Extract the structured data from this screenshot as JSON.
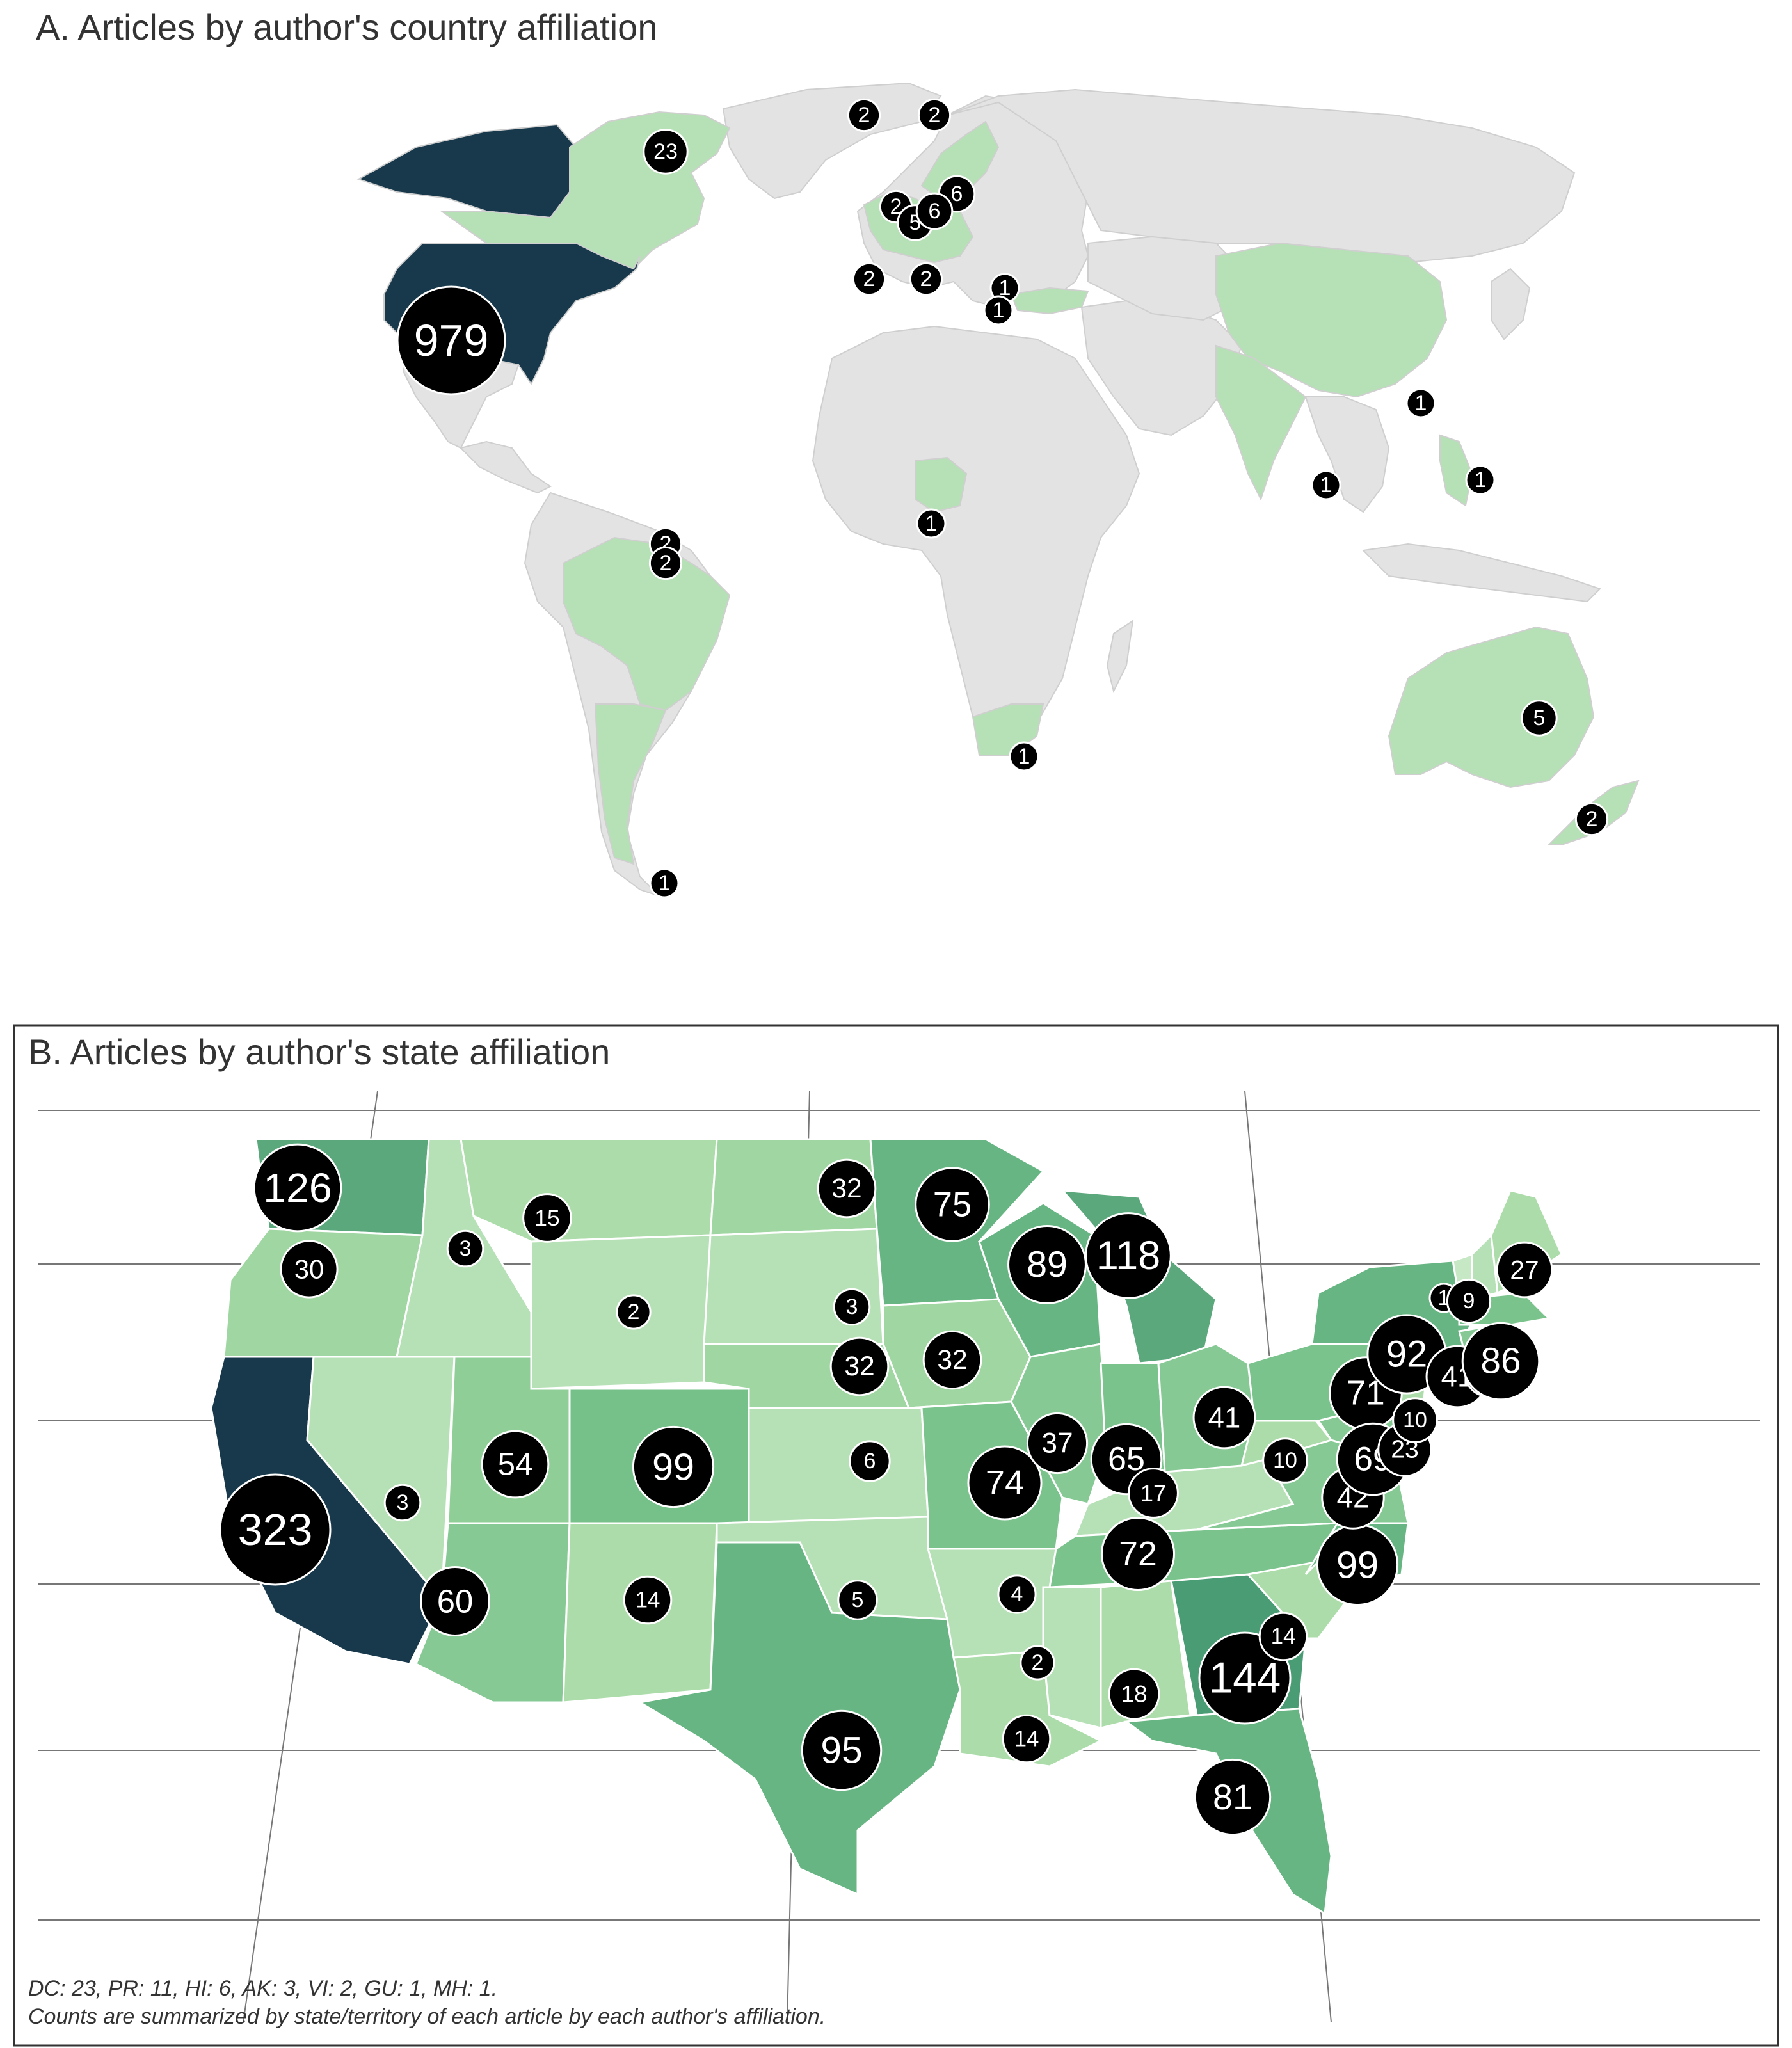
{
  "panel_a": {
    "title": "A. Articles by author's country affiliation",
    "colors": {
      "land": "#e3e3e3",
      "low": "#b6e0b6",
      "high": "#17394b"
    },
    "markers": [
      {
        "region": "United States",
        "value": "979",
        "count": 979
      },
      {
        "region": "Canada",
        "value": "23",
        "count": 23
      },
      {
        "region": "Greenland / Iceland",
        "value": "2",
        "count": 2
      },
      {
        "region": "Norway",
        "value": "2",
        "count": 2
      },
      {
        "region": "Denmark",
        "value": "6",
        "count": 6
      },
      {
        "region": "United Kingdom",
        "value": "2",
        "count": 2
      },
      {
        "region": "Netherlands",
        "value": "5",
        "count": 5
      },
      {
        "region": "Germany",
        "value": "6",
        "count": 6
      },
      {
        "region": "Spain",
        "value": "2",
        "count": 2
      },
      {
        "region": "Italy",
        "value": "2",
        "count": 2
      },
      {
        "region": "Turkey",
        "value": "1",
        "count": 1
      },
      {
        "region": "Greece",
        "value": "1",
        "count": 1
      },
      {
        "region": "Taiwan",
        "value": "1",
        "count": 1
      },
      {
        "region": "Sri Lanka",
        "value": "1",
        "count": 1
      },
      {
        "region": "Philippines",
        "value": "1",
        "count": 1
      },
      {
        "region": "Nigeria",
        "value": "1",
        "count": 1
      },
      {
        "region": "Suriname",
        "value": "2",
        "count": 2
      },
      {
        "region": "French Guiana",
        "value": "2",
        "count": 2
      },
      {
        "region": "South Africa",
        "value": "1",
        "count": 1
      },
      {
        "region": "Australia",
        "value": "5",
        "count": 5
      },
      {
        "region": "New Zealand",
        "value": "2",
        "count": 2
      },
      {
        "region": "Chile / Argentina",
        "value": "1",
        "count": 1
      }
    ]
  },
  "panel_b": {
    "title": "B. Articles by author's state affiliation",
    "markers": [
      {
        "state": "WA",
        "value": "126",
        "count": 126
      },
      {
        "state": "OR",
        "value": "30",
        "count": 30
      },
      {
        "state": "CA",
        "value": "323",
        "count": 323
      },
      {
        "state": "NV",
        "value": "3",
        "count": 3
      },
      {
        "state": "ID",
        "value": "3",
        "count": 3
      },
      {
        "state": "MT",
        "value": "15",
        "count": 15
      },
      {
        "state": "WY",
        "value": "2",
        "count": 2
      },
      {
        "state": "UT",
        "value": "54",
        "count": 54
      },
      {
        "state": "CO",
        "value": "99",
        "count": 99
      },
      {
        "state": "AZ",
        "value": "60",
        "count": 60
      },
      {
        "state": "NM",
        "value": "14",
        "count": 14
      },
      {
        "state": "ND",
        "value": "32",
        "count": 32
      },
      {
        "state": "SD",
        "value": "3",
        "count": 3
      },
      {
        "state": "NE",
        "value": "32",
        "count": 32
      },
      {
        "state": "KS",
        "value": "6",
        "count": 6
      },
      {
        "state": "OK",
        "value": "5",
        "count": 5
      },
      {
        "state": "TX",
        "value": "95",
        "count": 95
      },
      {
        "state": "MN",
        "value": "75",
        "count": 75
      },
      {
        "state": "IA",
        "value": "32",
        "count": 32
      },
      {
        "state": "MO",
        "value": "74",
        "count": 74
      },
      {
        "state": "AR",
        "value": "4",
        "count": 4
      },
      {
        "state": "LA",
        "value": "14",
        "count": 14
      },
      {
        "state": "WI",
        "value": "89",
        "count": 89
      },
      {
        "state": "MI",
        "value": "118",
        "count": 118
      },
      {
        "state": "IL",
        "value": "37",
        "count": 37
      },
      {
        "state": "IN",
        "value": "65",
        "count": 65
      },
      {
        "state": "KY",
        "value": "17",
        "count": 17
      },
      {
        "state": "TN",
        "value": "72",
        "count": 72
      },
      {
        "state": "MS",
        "value": "2",
        "count": 2
      },
      {
        "state": "AL",
        "value": "18",
        "count": 18
      },
      {
        "state": "GA",
        "value": "144",
        "count": 144
      },
      {
        "state": "FL",
        "value": "81",
        "count": 81
      },
      {
        "state": "SC",
        "value": "14",
        "count": 14
      },
      {
        "state": "NC",
        "value": "99",
        "count": 99
      },
      {
        "state": "VA",
        "value": "42",
        "count": 42
      },
      {
        "state": "WV",
        "value": "10",
        "count": 10
      },
      {
        "state": "OH",
        "value": "41",
        "count": 41
      },
      {
        "state": "PA",
        "value": "71",
        "count": 71
      },
      {
        "state": "NY",
        "value": "92",
        "count": 92
      },
      {
        "state": "MD",
        "value": "69",
        "count": 69
      },
      {
        "state": "DE",
        "value": "23",
        "count": 23
      },
      {
        "state": "NJ",
        "value": "10",
        "count": 10
      },
      {
        "state": "CT",
        "value": "41",
        "count": 41
      },
      {
        "state": "RI",
        "value": "12",
        "count": 12
      },
      {
        "state": "MA",
        "value": "86",
        "count": 86
      },
      {
        "state": "VT",
        "value": "1",
        "count": 1
      },
      {
        "state": "NH",
        "value": "9",
        "count": 9
      },
      {
        "state": "ME",
        "value": "27",
        "count": 27
      }
    ],
    "footnote_1": "DC: 23, PR: 11, HI: 6, AK: 3, VI: 2, GU: 1, MH: 1.",
    "footnote_2": "Counts are summarized by state/territory of each article by each author's affiliation."
  }
}
